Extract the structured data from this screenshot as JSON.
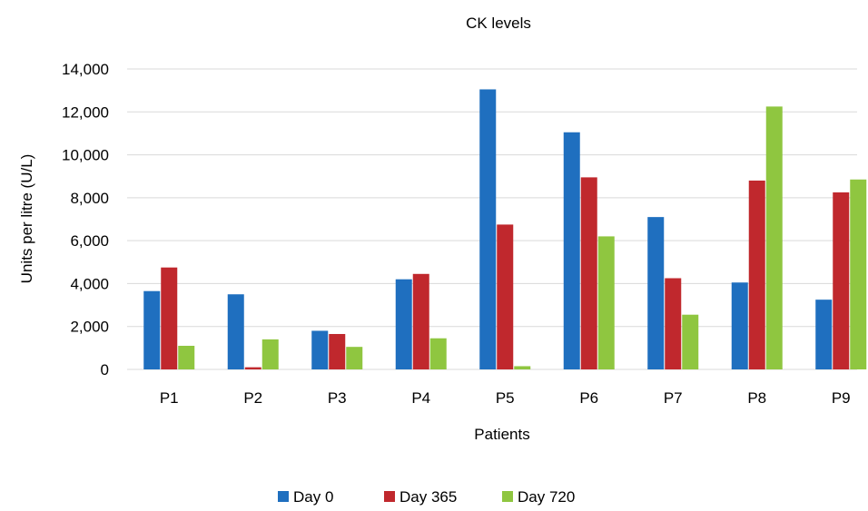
{
  "chart_data": {
    "type": "bar",
    "title": "CK levels",
    "xlabel": "Patients",
    "ylabel": "Units per litre (U/L)",
    "ylim": [
      0,
      14000
    ],
    "yticks": [
      0,
      2000,
      4000,
      6000,
      8000,
      10000,
      12000,
      14000
    ],
    "ytick_labels": [
      "0",
      "2,000",
      "4,000",
      "6,000",
      "8,000",
      "10,000",
      "12,000",
      "14,000"
    ],
    "categories": [
      "P1",
      "P2",
      "P3",
      "P4",
      "P5",
      "P6",
      "P7",
      "P8",
      "P9"
    ],
    "series": [
      {
        "name": "Day 0",
        "color": "#1f6fbf",
        "values": [
          3650,
          3500,
          1800,
          4200,
          13050,
          11050,
          7100,
          4050,
          3250
        ]
      },
      {
        "name": "Day 365",
        "color": "#c0282d",
        "values": [
          4750,
          100,
          1650,
          4450,
          6750,
          8950,
          4250,
          8800,
          8250
        ]
      },
      {
        "name": "Day 720",
        "color": "#8fc640",
        "values": [
          1100,
          1400,
          1050,
          1450,
          150,
          6200,
          2550,
          12250,
          8850
        ]
      }
    ],
    "grid": true,
    "legend_position": "bottom"
  }
}
